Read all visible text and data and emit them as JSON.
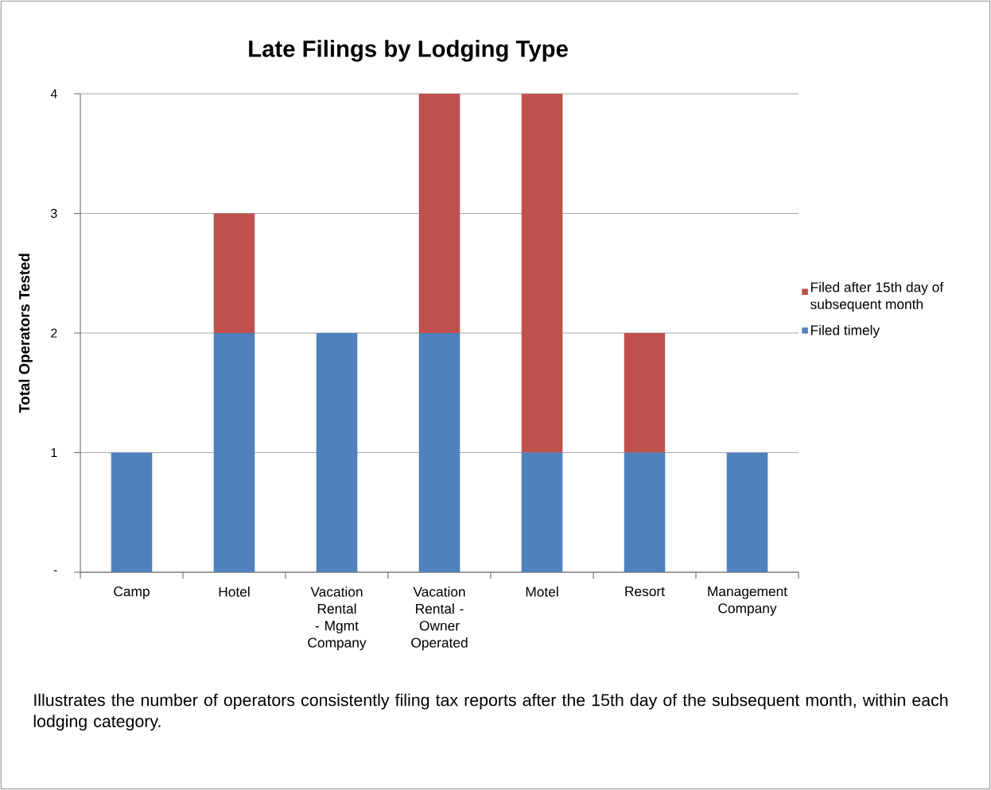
{
  "chart_data": {
    "type": "bar",
    "title": "Late Filings by Lodging Type",
    "ylabel": "Total Operators Tested",
    "categories": [
      "Camp",
      "Hotel",
      "Vacation Rental - Mgmt Company",
      "Vacation Rental - Owner Operated",
      "Motel",
      "Resort",
      "Management Company"
    ],
    "series": [
      {
        "name": "Filed timely",
        "color": "#4f81bd",
        "values": [
          1,
          2,
          2,
          2,
          1,
          1,
          1
        ]
      },
      {
        "name": "Filed after 15th day of subsequent month",
        "color": "#c0504d",
        "values": [
          0,
          1,
          0,
          2,
          3,
          1,
          0
        ]
      }
    ],
    "stacked": true,
    "ylim": [
      0,
      4
    ],
    "yticks": [
      {
        "value": 0,
        "label": "-"
      },
      1,
      2,
      3,
      4
    ],
    "grid": "y",
    "legend": "right",
    "annotations": [
      "Illustrates the number of operators consistently filing tax reports after the 15th day of the subsequent month, within each lodging category."
    ]
  }
}
